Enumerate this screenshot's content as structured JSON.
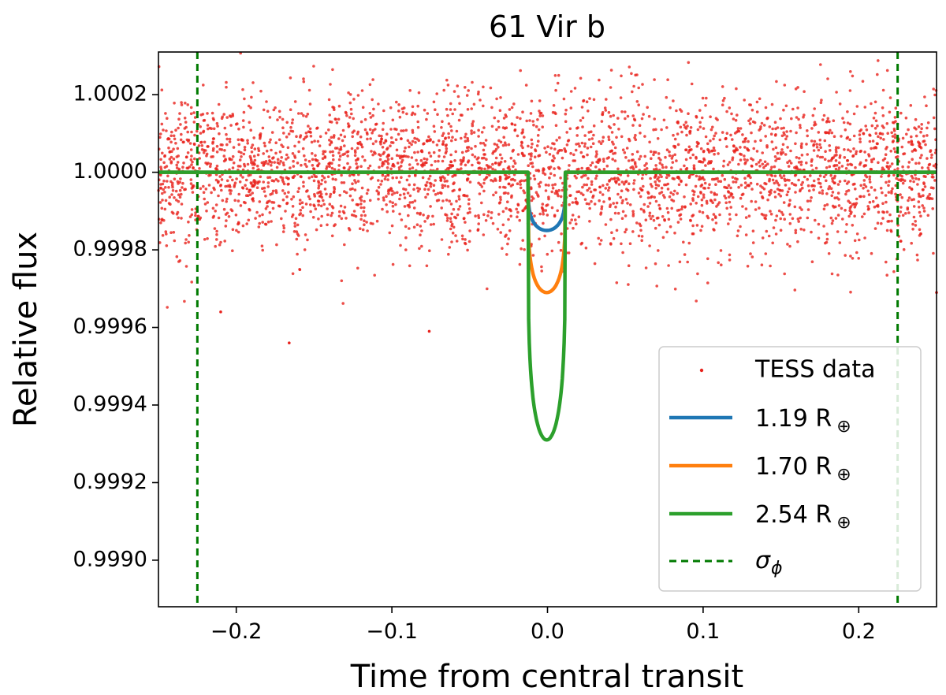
{
  "chart_data": {
    "type": "scatter",
    "title": "61 Vir b",
    "xlabel": "Time from central transit",
    "ylabel": "Relative flux",
    "xlim": [
      -0.25,
      0.25
    ],
    "ylim": [
      0.99888,
      1.00031
    ],
    "x_ticks": [
      -0.2,
      -0.1,
      0.0,
      0.1,
      0.2
    ],
    "x_tick_labels": [
      "−0.2",
      "−0.1",
      "0.0",
      "0.1",
      "0.2"
    ],
    "y_ticks": [
      0.999,
      0.9992,
      0.9994,
      0.9996,
      0.9998,
      1.0,
      1.0002
    ],
    "y_tick_labels": [
      "0.9990",
      "0.9992",
      "0.9994",
      "0.9996",
      "0.9998",
      "1.0000",
      "1.0002"
    ],
    "scatter": {
      "name": "TESS data",
      "color": "#e8221c",
      "n_points": 3500,
      "x_range": [
        -0.25,
        0.25
      ],
      "mean": 1.0,
      "sigma": 0.0001,
      "outliers": [
        {
          "x": -0.166,
          "y": 0.99956
        },
        {
          "x": -0.076,
          "y": 0.99959
        },
        {
          "x": -0.21,
          "y": 0.99964
        },
        {
          "x": 0.25,
          "y": 0.99969
        }
      ]
    },
    "series": [
      {
        "name": "1.19 R",
        "subscript": "⊕",
        "color": "#1f77b4",
        "depth": 0.00015
      },
      {
        "name": "1.70 R",
        "subscript": "⊕",
        "color": "#ff7f0e",
        "depth": 0.00031
      },
      {
        "name": "2.54 R",
        "subscript": "⊕",
        "color": "#2ca02c",
        "depth": 0.00069
      }
    ],
    "transit": {
      "t_start": -0.0125,
      "t_end": 0.0115,
      "baseline": 1.0
    },
    "vlines": {
      "name": "σ",
      "subscript": "ϕ",
      "color": "#007a00",
      "x": [
        -0.225,
        0.225
      ],
      "style": "dashed"
    },
    "legend_position": "lower right"
  }
}
